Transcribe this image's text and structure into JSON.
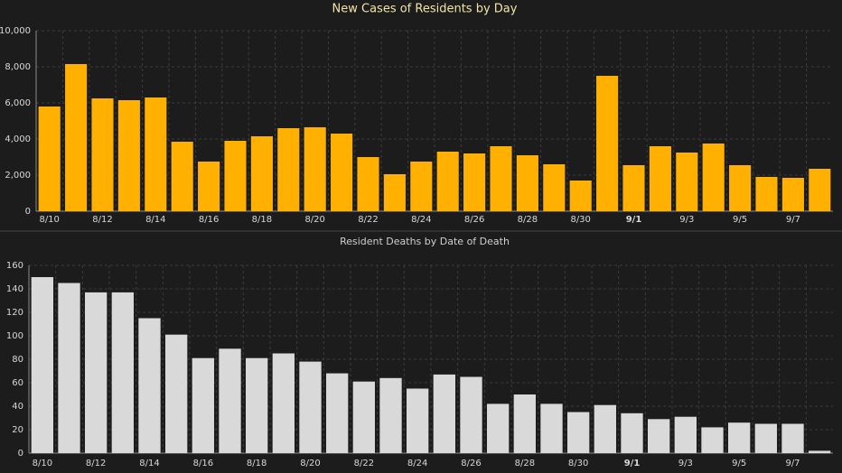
{
  "chart_data": [
    {
      "type": "bar",
      "title": "New Cases of Residents by Day",
      "color": "#ffb000",
      "grid": true,
      "categories": [
        "8/10",
        null,
        "8/12",
        null,
        "8/14",
        null,
        "8/16",
        null,
        "8/18",
        null,
        "8/20",
        null,
        "8/22",
        null,
        "8/24",
        null,
        "8/26",
        null,
        "8/28",
        null,
        "8/30",
        null,
        "9/1",
        null,
        "9/3",
        null,
        "9/5",
        null,
        "9/7",
        null
      ],
      "values": [
        5800,
        8150,
        6250,
        6150,
        6300,
        3850,
        2750,
        3900,
        4150,
        4600,
        4650,
        4300,
        3000,
        2050,
        2750,
        3300,
        3200,
        3600,
        3100,
        2600,
        1700,
        7500,
        2550,
        3600,
        3250,
        3750,
        2550,
        1900,
        1850,
        2350
      ],
      "ylim": [
        0,
        10000
      ],
      "yticks": [
        0,
        {
          "value": 2000,
          "label": "2,000"
        },
        {
          "value": 4000,
          "label": "4,000"
        },
        {
          "value": 6000,
          "label": "6,000"
        },
        {
          "value": 8000,
          "label": "8,000"
        },
        {
          "value": 10000,
          "label": "10,000"
        }
      ]
    },
    {
      "type": "bar",
      "title": "Resident Deaths by Date of Death",
      "color": "#d9d9d9",
      "grid": true,
      "categories": [
        "8/10",
        null,
        "8/12",
        null,
        "8/14",
        null,
        "8/16",
        null,
        "8/18",
        null,
        "8/20",
        null,
        "8/22",
        null,
        "8/24",
        null,
        "8/26",
        null,
        "8/28",
        null,
        "8/30",
        null,
        "9/1",
        null,
        "9/3",
        null,
        "9/5",
        null,
        "9/7",
        null
      ],
      "values": [
        150,
        145,
        137,
        137,
        115,
        101,
        81,
        89,
        81,
        85,
        78,
        68,
        61,
        64,
        55,
        67,
        65,
        42,
        50,
        42,
        35,
        41,
        34,
        29,
        31,
        22,
        26,
        25,
        25,
        2
      ],
      "ylim": [
        0,
        160
      ],
      "yticks": [
        0,
        20,
        40,
        60,
        80,
        100,
        120,
        140,
        160
      ]
    }
  ]
}
